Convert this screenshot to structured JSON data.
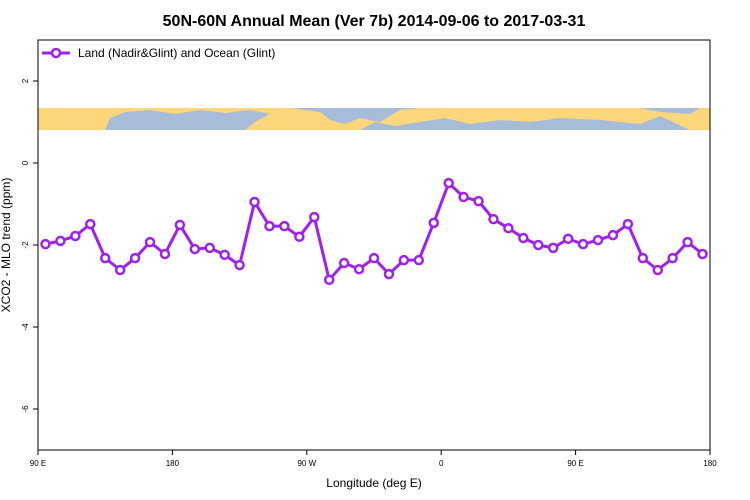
{
  "chart_data": {
    "type": "line",
    "title": "50N-60N Annual Mean (Ver 7b)   2014-09-06 to 2017-03-31",
    "x_label": "Longitude (deg E)",
    "y_label": "XCO2 - MLO trend (ppm)",
    "x": [
      95,
      105,
      115,
      125,
      135,
      145,
      155,
      165,
      175,
      185,
      195,
      205,
      215,
      225,
      235,
      245,
      255,
      265,
      275,
      285,
      295,
      305,
      315,
      325,
      335,
      345,
      355,
      365,
      375,
      385,
      395,
      405,
      415,
      425,
      435,
      445,
      455,
      465,
      475,
      485,
      495,
      505,
      515,
      525,
      535
    ],
    "series": [
      {
        "name": "Land (Nadir&Glint) and Ocean (Glint)",
        "color": "#a020f0",
        "values": [
          -1.98,
          -1.9,
          -1.78,
          -1.49,
          -2.32,
          -2.61,
          -2.32,
          -1.93,
          -2.22,
          -1.51,
          -2.1,
          -2.07,
          -2.24,
          -2.49,
          -0.95,
          -1.54,
          -1.54,
          -1.8,
          -1.32,
          -2.85,
          -2.44,
          -2.59,
          -2.32,
          -2.71,
          -2.37,
          -2.37,
          -1.46,
          -0.49,
          -0.83,
          -0.93,
          -1.37,
          -1.59,
          -1.83,
          -2.0,
          -2.07,
          -1.85,
          -1.98,
          -1.88,
          -1.76,
          -1.49,
          -2.32,
          -2.61,
          -2.32,
          -1.93,
          -2.22
        ]
      }
    ],
    "xlim": [
      90,
      540
    ],
    "xticks": [
      {
        "value": 90,
        "label": "90 E"
      },
      {
        "value": 180,
        "label": "180"
      },
      {
        "value": 270,
        "label": "90 W"
      },
      {
        "value": 360,
        "label": "0"
      },
      {
        "value": 450,
        "label": "90 E"
      },
      {
        "value": 540,
        "label": "180"
      }
    ],
    "ylim": [
      -7,
      3
    ],
    "yticks": [
      -6,
      -4,
      -2,
      0,
      2
    ],
    "legend": "top-left"
  }
}
